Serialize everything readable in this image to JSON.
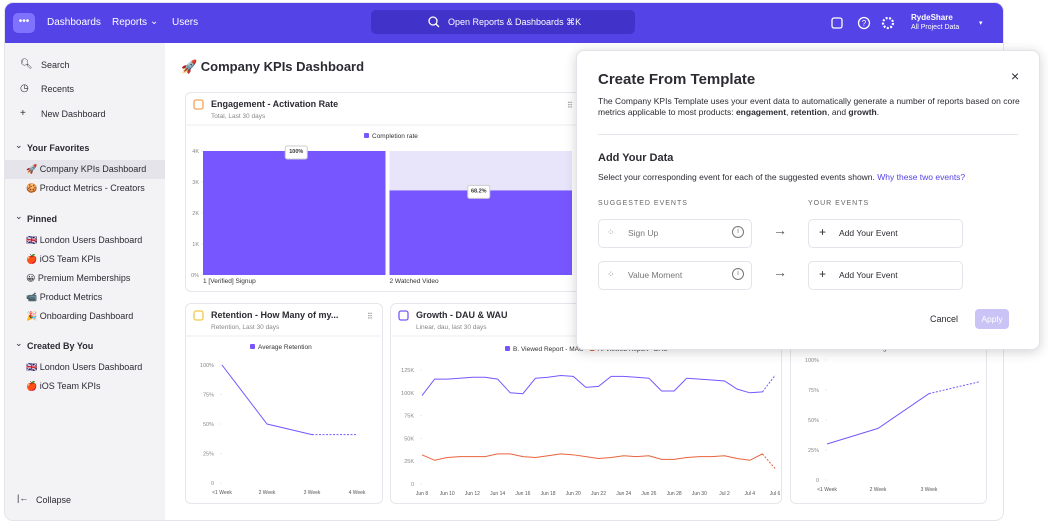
{
  "topbar": {
    "nav": [
      "Dashboards",
      "Reports",
      "Users"
    ],
    "search": "Open Reports & Dashboards ⌘K",
    "project": "RydeShare",
    "project_sub": "All Project Data"
  },
  "sidebar": {
    "top": [
      "Search",
      "Recents",
      "New Dashboard"
    ],
    "sections": [
      {
        "title": "Your Favorites",
        "items": [
          "🚀 Company KPIs Dashboard",
          "🍪 Product Metrics - Creators"
        ]
      },
      {
        "title": "Pinned",
        "items": [
          "🇬🇧 London Users Dashboard",
          "🍎 iOS Team KPIs",
          "😀 Premium Memberships",
          "📹 Product Metrics",
          "🎉 Onboarding Dashboard"
        ]
      },
      {
        "title": "Created By You",
        "items": [
          "🇬🇧 London Users Dashboard",
          "🍎 iOS Team KPIs"
        ]
      }
    ],
    "collapse": "Collapse"
  },
  "dashboard": {
    "title": "🚀 Company KPIs Dashboard"
  },
  "modal": {
    "title": "Create From Template",
    "close": "×",
    "description": [
      "The Company KPIs Template uses your event data to automatically generate a number of reports based on core metrics applicable to most products: ",
      "engagement",
      ", ",
      "retention",
      ", and ",
      "growth",
      "."
    ],
    "section_title": "Add Your Data",
    "instruction": "Select your corresponding event for each of the suggested events shown.",
    "link": "Why these two events?",
    "suggested_header": "SUGGESTED EVENTS",
    "your_header": "YOUR EVENTS",
    "events": [
      {
        "suggested": "Sign Up",
        "action": "Add Your Event"
      },
      {
        "suggested": "Value Moment",
        "action": "Add Your Event"
      }
    ],
    "cancel": "Cancel",
    "apply": "Apply"
  },
  "chart_data": [
    {
      "type": "bar",
      "title": "Engagement - Activation Rate",
      "subtitle": "Total, Last 30 days",
      "categories": [
        "1 [Verified] Signup",
        "2 Watched Video"
      ],
      "series": [
        {
          "name": "Completion rate",
          "color": "#7856ff",
          "values": [
            4000,
            2728
          ],
          "value_labels": [
            "100%",
            "68.2%"
          ]
        }
      ],
      "ylim": [
        0,
        4000
      ],
      "yticks": [
        {
          "value": 0,
          "label": "0%"
        },
        {
          "value": 1000,
          "label": "1K"
        },
        {
          "value": 2000,
          "label": "2K"
        },
        {
          "value": 3000,
          "label": "3K"
        },
        {
          "value": 4000,
          "label": "4K"
        }
      ]
    },
    {
      "type": "line",
      "title": "Retention - How Many of my...",
      "subtitle": "Retention, Last 30 days",
      "categories": [
        "<1 Week",
        "2 Week",
        "3 Week",
        "4 Week"
      ],
      "series": [
        {
          "name": "Average Retention",
          "color": "#7856ff",
          "values": [
            100,
            50,
            41,
            41
          ]
        }
      ],
      "ylim": [
        0,
        100
      ],
      "yticks": [
        0,
        {
          "value": 25,
          "label": "25%"
        },
        {
          "value": 50,
          "label": "50%"
        },
        {
          "value": 75,
          "label": "75%"
        },
        {
          "value": 100,
          "label": "100%"
        }
      ]
    },
    {
      "type": "line",
      "title": "Growth - DAU & WAU",
      "subtitle": "Linear, dau, last 30 days",
      "categories": [
        "Jun 8",
        null,
        "Jun 10",
        null,
        "Jun 12",
        null,
        "Jun 14",
        null,
        "Jun 16",
        null,
        "Jun 18",
        null,
        "Jun 20",
        null,
        "Jun 22",
        null,
        "Jun 24",
        null,
        "Jun 26",
        null,
        "Jun 28",
        null,
        "Jun 30",
        null,
        "Jul 2",
        null,
        "Jul 4",
        null,
        "Jul 6"
      ],
      "series": [
        {
          "name": "B. Viewed Report - MAU",
          "color": "#7856ff",
          "values": [
            97000,
            115000,
            115000,
            116000,
            117000,
            117000,
            115000,
            100000,
            99000,
            116000,
            117000,
            119000,
            118000,
            106000,
            107000,
            118000,
            118000,
            117000,
            116000,
            102000,
            102000,
            116000,
            115000,
            114000,
            113000,
            104000,
            100000,
            101000,
            119000
          ]
        },
        {
          "name": "A. Viewed Report - DAU",
          "color": "#e8633d",
          "values": [
            32000,
            26000,
            29000,
            30000,
            30000,
            30000,
            33000,
            33000,
            30000,
            29000,
            31000,
            33000,
            32000,
            30000,
            28000,
            29000,
            31000,
            30000,
            31000,
            27000,
            27000,
            29000,
            30000,
            30000,
            31000,
            28000,
            26000,
            33000,
            17000
          ]
        }
      ],
      "ylim": [
        0,
        125000
      ],
      "yticks": [
        0,
        {
          "value": 25000,
          "label": "25K"
        },
        {
          "value": 50000,
          "label": "50K"
        },
        {
          "value": 75000,
          "label": "75K"
        },
        {
          "value": 100000,
          "label": "100K"
        },
        {
          "value": 125000,
          "label": "125K"
        }
      ]
    },
    {
      "type": "line",
      "categories": [
        "<1 Week",
        "2 Week",
        "3 Week",
        null
      ],
      "series": [
        {
          "name": "Average Retention",
          "color": "#7856ff",
          "values": [
            30,
            43,
            72,
            82
          ]
        }
      ],
      "ylim": [
        0,
        100
      ],
      "yticks": [
        0,
        {
          "value": 25,
          "label": "25%"
        },
        {
          "value": 50,
          "label": "50%"
        },
        {
          "value": 75,
          "label": "75%"
        },
        {
          "value": 100,
          "label": "100%"
        }
      ]
    }
  ]
}
